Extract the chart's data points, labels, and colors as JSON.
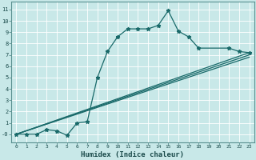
{
  "xlabel": "Humidex (Indice chaleur)",
  "bg_color": "#c8e8e8",
  "grid_color": "#ffffff",
  "line_color": "#1a6a6a",
  "xlim": [
    -0.5,
    23.5
  ],
  "ylim": [
    -0.7,
    11.7
  ],
  "xticks": [
    0,
    1,
    2,
    3,
    4,
    5,
    6,
    7,
    8,
    9,
    10,
    11,
    12,
    13,
    14,
    15,
    16,
    17,
    18,
    19,
    20,
    21,
    22,
    23
  ],
  "yticks": [
    0,
    1,
    2,
    3,
    4,
    5,
    6,
    7,
    8,
    9,
    10,
    11
  ],
  "ytick_labels": [
    "-0",
    "1",
    "2",
    "3",
    "4",
    "5",
    "6",
    "7",
    "8",
    "9",
    "10",
    "11"
  ],
  "series1_x": [
    0,
    1,
    2,
    3,
    4,
    5,
    6,
    7,
    8,
    9,
    10,
    11,
    12,
    13,
    14,
    15,
    16,
    17,
    18,
    21,
    22,
    23
  ],
  "series1_y": [
    0,
    0,
    0,
    0.4,
    0.3,
    -0.1,
    1.0,
    1.1,
    5.0,
    7.3,
    8.6,
    9.3,
    9.3,
    9.3,
    9.6,
    10.9,
    9.1,
    8.6,
    7.6,
    7.6,
    7.3,
    7.2
  ],
  "series2_x": [
    0,
    23
  ],
  "series2_y": [
    0,
    7.2
  ],
  "series3_x": [
    0,
    23
  ],
  "series3_y": [
    0,
    7.0
  ],
  "series4_x": [
    0,
    23
  ],
  "series4_y": [
    0,
    6.8
  ]
}
